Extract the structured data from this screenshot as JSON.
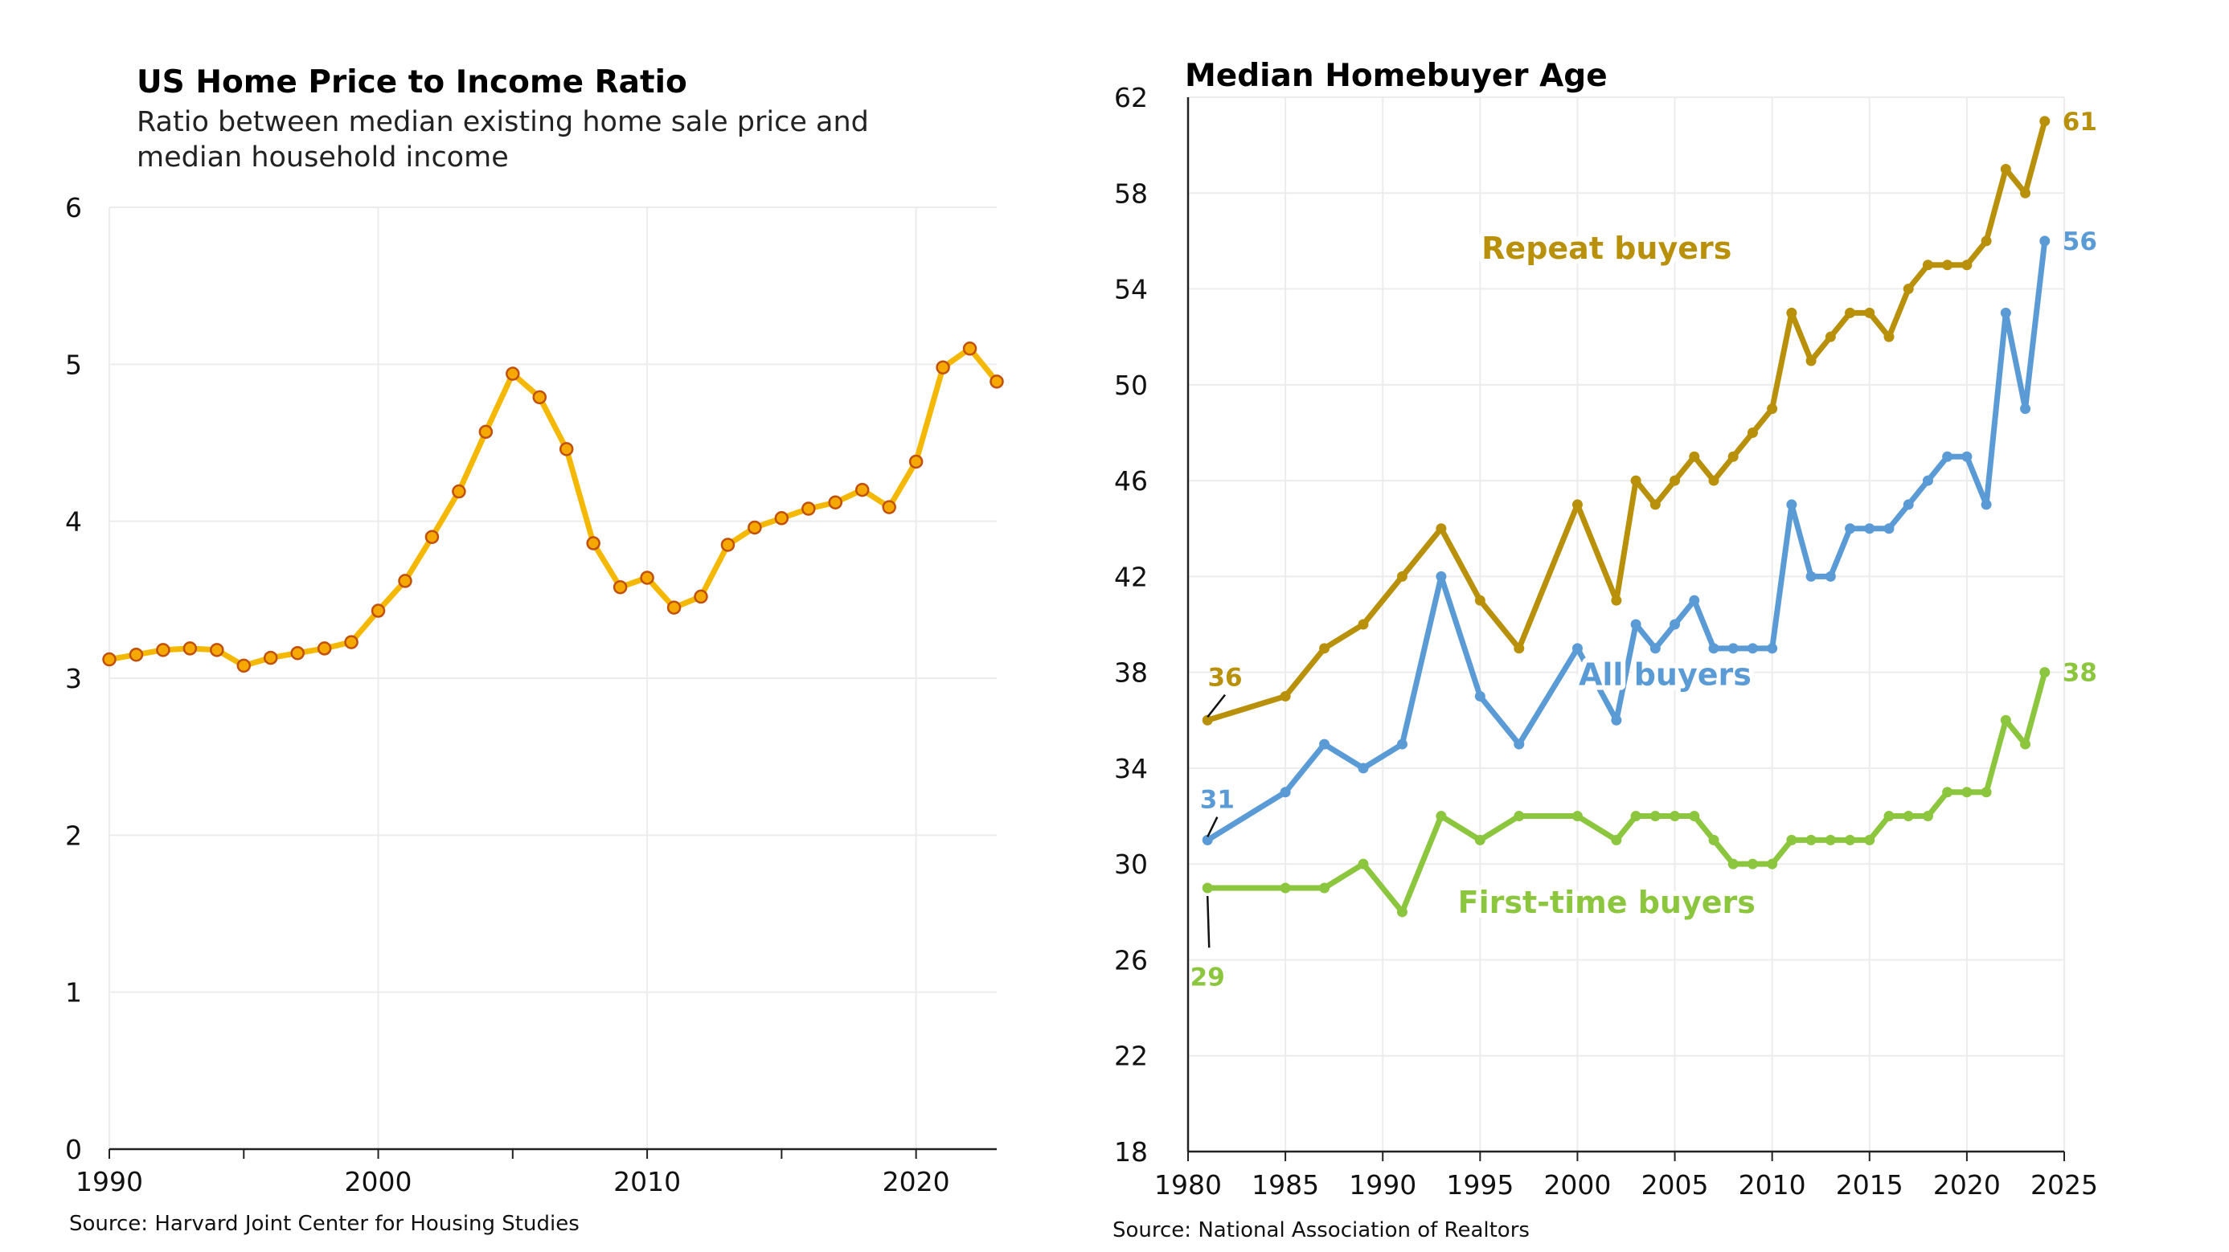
{
  "colors": {
    "ratio_line": "#F5B800",
    "ratio_marker_fill": "#F5A800",
    "ratio_marker_stroke": "#C0500A",
    "repeat": "#B8900A",
    "all": "#5B9BD5",
    "first": "#8CC63F",
    "grid": "#ECECEC",
    "axis": "#222222"
  },
  "left": {
    "title": "US Home Price to Income Ratio",
    "subtitle_line1": "Ratio between median existing home sale price and",
    "subtitle_line2": "median household income",
    "source": "Source: Harvard Joint Center for Housing Studies"
  },
  "right": {
    "title": "Median Homebuyer Age",
    "source": "Source: National Association of Realtors"
  },
  "chart_data": [
    {
      "type": "line",
      "title": "US Home Price to Income Ratio",
      "subtitle": "Ratio between median existing home sale price and median household income",
      "xlim": [
        1990,
        2023
      ],
      "ylim": [
        0,
        6
      ],
      "x_ticks": [
        1990,
        2000,
        2010,
        2020
      ],
      "y_ticks": [
        0,
        1,
        2,
        3,
        4,
        5,
        6
      ],
      "grid": true,
      "markers": true,
      "x": [
        1990,
        1991,
        1992,
        1993,
        1994,
        1995,
        1996,
        1997,
        1998,
        1999,
        2000,
        2001,
        2002,
        2003,
        2004,
        2005,
        2006,
        2007,
        2008,
        2009,
        2010,
        2011,
        2012,
        2013,
        2014,
        2015,
        2016,
        2017,
        2018,
        2019,
        2020,
        2021,
        2022,
        2023
      ],
      "values": [
        3.12,
        3.15,
        3.18,
        3.19,
        3.18,
        3.08,
        3.13,
        3.16,
        3.19,
        3.23,
        3.43,
        3.62,
        3.9,
        4.19,
        4.57,
        4.94,
        4.79,
        4.46,
        3.86,
        3.58,
        3.64,
        3.45,
        3.52,
        3.85,
        3.96,
        4.02,
        4.08,
        4.12,
        4.2,
        4.09,
        4.38,
        4.98,
        5.1,
        4.89
      ],
      "source": "Source: Harvard Joint Center for Housing Studies"
    },
    {
      "type": "line",
      "title": "Median Homebuyer Age",
      "xlim": [
        1980,
        2025
      ],
      "ylim": [
        18,
        62
      ],
      "x_ticks": [
        1980,
        1985,
        1990,
        1995,
        2000,
        2005,
        2010,
        2015,
        2020,
        2025
      ],
      "y_ticks": [
        18,
        22,
        26,
        30,
        34,
        38,
        42,
        46,
        50,
        54,
        58,
        62
      ],
      "grid": true,
      "series": [
        {
          "name": "Repeat buyers",
          "x": [
            1981,
            1985,
            1987,
            1989,
            1991,
            1993,
            1995,
            1997,
            2000,
            2002,
            2003,
            2004,
            2005,
            2006,
            2007,
            2008,
            2009,
            2010,
            2011,
            2012,
            2013,
            2014,
            2015,
            2016,
            2017,
            2018,
            2019,
            2020,
            2021,
            2022,
            2023,
            2024
          ],
          "values": [
            36,
            37,
            39,
            40,
            42,
            44,
            41,
            39,
            45,
            41,
            46,
            45,
            46,
            47,
            46,
            47,
            48,
            49,
            53,
            51,
            52,
            53,
            53,
            52,
            54,
            55,
            55,
            55,
            56,
            59,
            58,
            61
          ],
          "start_label": "36",
          "end_label": "61"
        },
        {
          "name": "All buyers",
          "x": [
            1981,
            1985,
            1987,
            1989,
            1991,
            1993,
            1995,
            1997,
            2000,
            2002,
            2003,
            2004,
            2005,
            2006,
            2007,
            2008,
            2009,
            2010,
            2011,
            2012,
            2013,
            2014,
            2015,
            2016,
            2017,
            2018,
            2019,
            2020,
            2021,
            2022,
            2023,
            2024
          ],
          "values": [
            31,
            33,
            35,
            34,
            35,
            42,
            37,
            35,
            39,
            36,
            40,
            39,
            40,
            41,
            39,
            39,
            39,
            39,
            45,
            42,
            42,
            44,
            44,
            44,
            45,
            46,
            47,
            47,
            45,
            53,
            49,
            56
          ],
          "start_label": "31",
          "end_label": "56"
        },
        {
          "name": "First-time buyers",
          "x": [
            1981,
            1985,
            1987,
            1989,
            1991,
            1993,
            1995,
            1997,
            2000,
            2002,
            2003,
            2004,
            2005,
            2006,
            2007,
            2008,
            2009,
            2010,
            2011,
            2012,
            2013,
            2014,
            2015,
            2016,
            2017,
            2018,
            2019,
            2020,
            2021,
            2022,
            2023,
            2024
          ],
          "values": [
            29,
            29,
            29,
            30,
            28,
            32,
            31,
            32,
            32,
            31,
            32,
            32,
            32,
            32,
            31,
            30,
            30,
            30,
            31,
            31,
            31,
            31,
            31,
            32,
            32,
            32,
            33,
            33,
            33,
            36,
            35,
            38
          ],
          "start_label": "29",
          "end_label": "38"
        }
      ],
      "source": "Source: National Association of Realtors"
    }
  ]
}
